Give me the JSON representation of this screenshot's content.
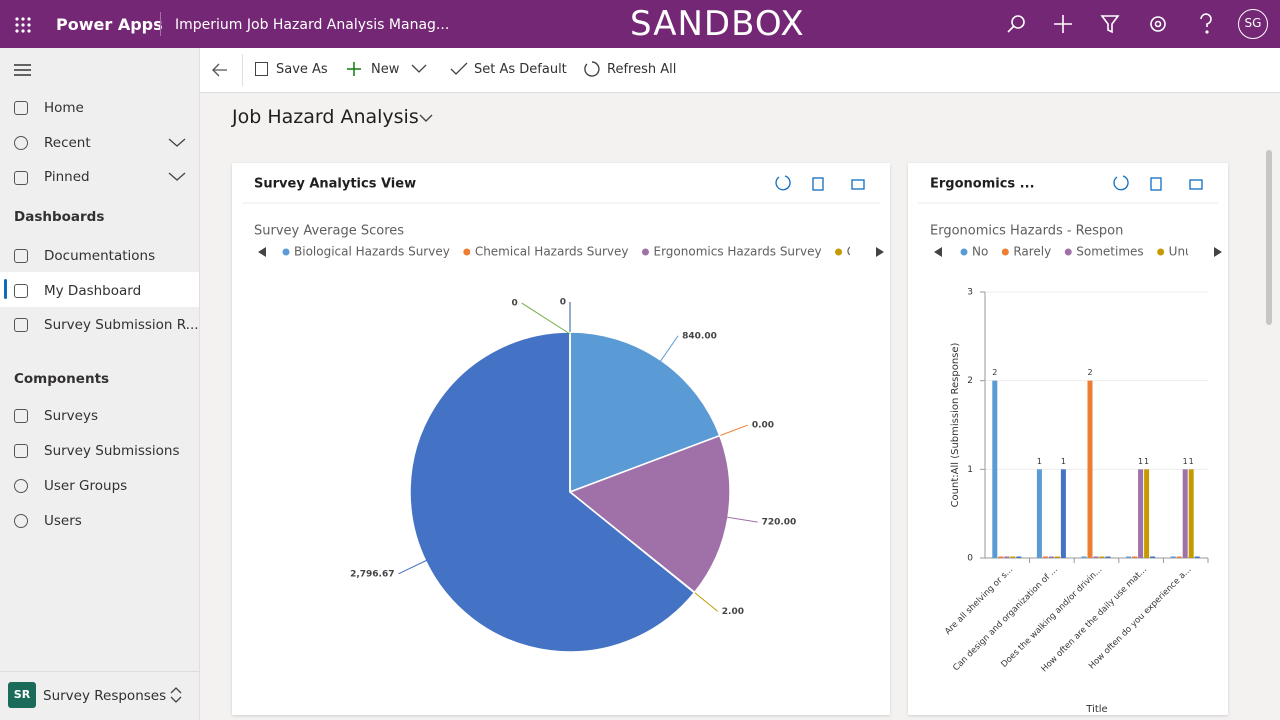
{
  "header": {
    "app_name": "Power Apps",
    "app_title": "Imperium Job Hazard Analysis Manag...",
    "environment": "SANDBOX",
    "avatar": "SG"
  },
  "command_bar": {
    "save_as": "Save As",
    "new": "New",
    "set_as_default": "Set As Default",
    "refresh_all": "Refresh All"
  },
  "nav": {
    "items": [
      "Home",
      "Recent",
      "Pinned"
    ],
    "sections": [
      {
        "title": "Dashboards",
        "items": [
          "Documentations",
          "My Dashboard",
          "Survey Submission R..."
        ]
      },
      {
        "title": "Components",
        "items": [
          "Surveys",
          "Survey Submissions",
          "User Groups",
          "Users"
        ]
      }
    ],
    "footer": {
      "badge": "SR",
      "label": "Survey Responses"
    }
  },
  "page": {
    "title": "Job Hazard Analysis"
  },
  "panels": [
    {
      "title": "Survey Analytics View",
      "chart_data": {
        "type": "pie",
        "title": "Survey Average Scores",
        "categories": [
          "Biological Hazards Survey",
          "Chemical Hazards Survey",
          "Ergonomics Hazards Survey",
          "Green Line",
          null,
          null,
          null
        ],
        "values": [
          840,
          0,
          720,
          2,
          2796.67,
          0,
          0
        ],
        "value_labels": [
          "840.00",
          "0.00",
          "720.00",
          "2.00",
          "2,796.67",
          "0",
          "0"
        ],
        "colors": [
          "#5b9bd5",
          "#ed7d31",
          "#a071a8",
          "#c49a00",
          "#4472c4",
          "#2e5597",
          "#70ad47"
        ]
      }
    },
    {
      "title": "Ergonomics ...",
      "chart_data": {
        "type": "bar",
        "title": "Ergonomics Hazards - Respon",
        "categories": [
          "Are all shelving or s...",
          "Can design and organization of ...",
          "Does the walking and/or drivin...",
          "How often are the daily use mat...",
          "How often do you experience a..."
        ],
        "series": [
          {
            "name": "No",
            "color": "#5b9bd5",
            "values": [
              2,
              1,
              0,
              0,
              0
            ]
          },
          {
            "name": "Rarely",
            "color": "#ed7d31",
            "values": [
              0,
              0,
              2,
              0,
              0
            ]
          },
          {
            "name": "Sometimes",
            "color": "#a071a8",
            "values": [
              0,
              0,
              0,
              1,
              1
            ]
          },
          {
            "name": "Unu",
            "color": "#c49a00",
            "values": [
              0,
              0,
              0,
              1,
              1
            ]
          },
          {
            "name": null,
            "color": "#4472c4",
            "values": [
              0,
              1,
              0,
              0,
              0
            ]
          }
        ],
        "ylim": [
          0,
          3
        ],
        "yticks": [
          0,
          1,
          2,
          3
        ],
        "grid": true,
        "ylabel": "Count:All (Submission Response)",
        "xlabel": "Title"
      }
    }
  ]
}
